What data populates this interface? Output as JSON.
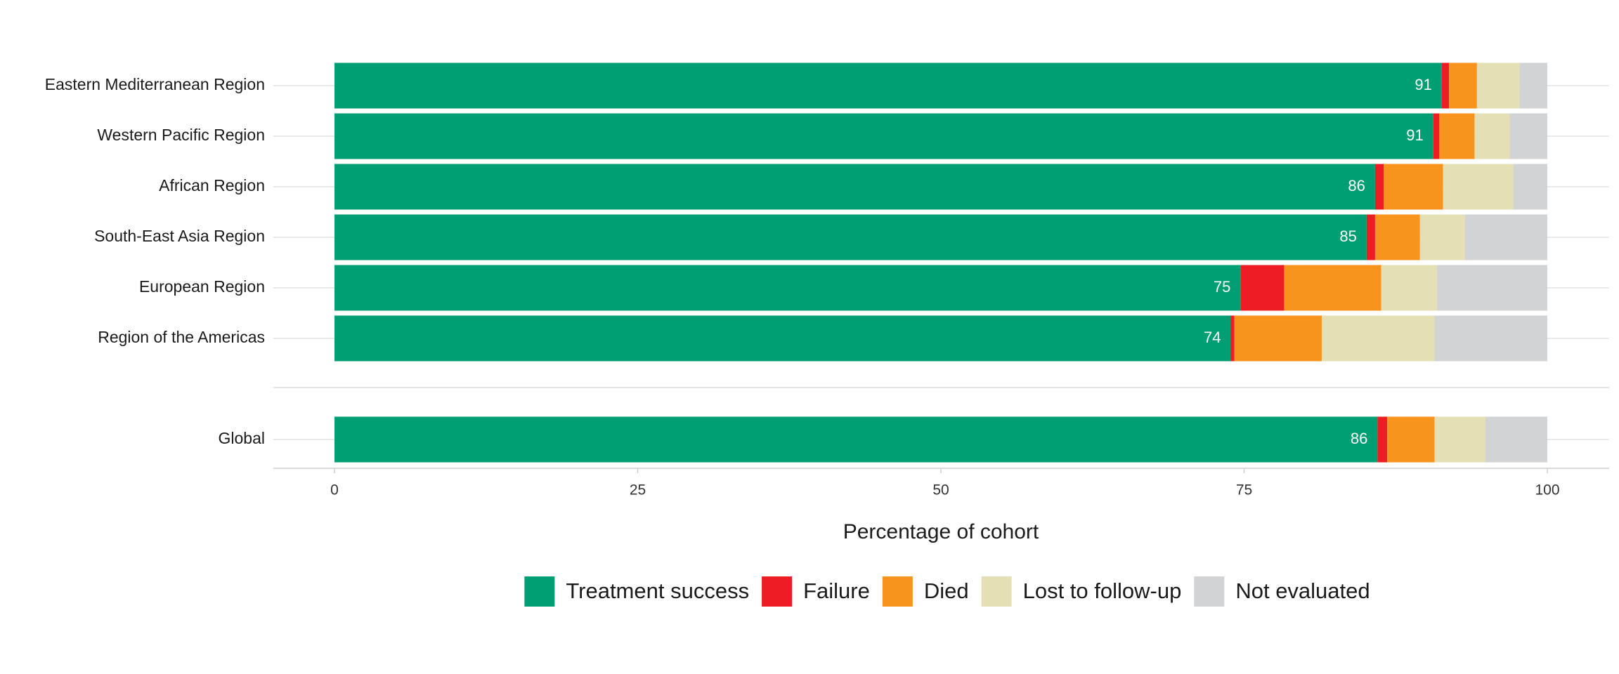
{
  "chart_data": {
    "type": "stacked-bar",
    "orientation": "horizontal",
    "x_label": "Percentage of cohort",
    "categories": [
      "Eastern Mediterranean Region",
      "Western Pacific Region",
      "African Region",
      "South-East Asia Region",
      "European Region",
      "Region of the Americas",
      "Global"
    ],
    "series": [
      {
        "name": "Treatment success",
        "color": "#009e73",
        "values": [
          91.3,
          90.6,
          85.8,
          85.1,
          74.7,
          73.9,
          86.0
        ],
        "value_labels": [
          "91",
          "91",
          "86",
          "85",
          "75",
          "74",
          "86"
        ]
      },
      {
        "name": "Failure",
        "color": "#ed1d24",
        "values": [
          0.6,
          0.5,
          0.7,
          0.7,
          3.6,
          0.3,
          0.8
        ]
      },
      {
        "name": "Died",
        "color": "#f7941d",
        "values": [
          2.3,
          2.9,
          4.9,
          3.7,
          8.0,
          7.2,
          3.9
        ]
      },
      {
        "name": "Lost to follow-up",
        "color": "#e5dfb6",
        "values": [
          3.5,
          2.9,
          5.8,
          3.7,
          4.6,
          9.3,
          4.2
        ]
      },
      {
        "name": "Not evaluated",
        "color": "#d1d3d4",
        "values": [
          2.3,
          3.1,
          2.8,
          6.8,
          9.1,
          9.3,
          5.1
        ]
      }
    ],
    "xlim": [
      0,
      100
    ],
    "xticks": [
      0,
      25,
      50,
      75,
      100
    ],
    "grid": true
  }
}
